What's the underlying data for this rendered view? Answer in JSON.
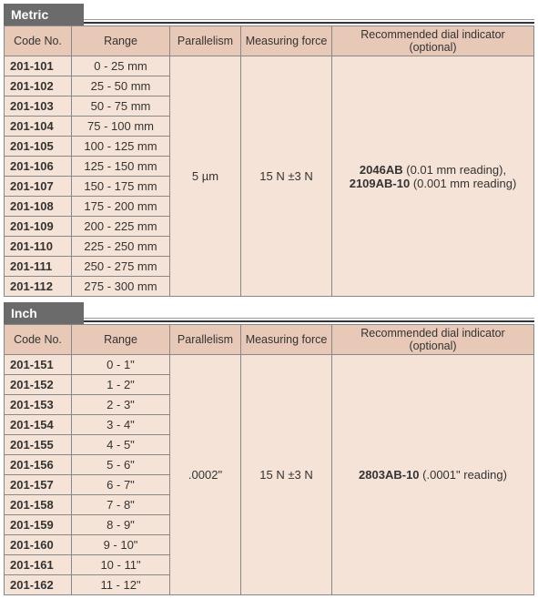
{
  "colors": {
    "tab_bg": "#6b6b6b",
    "tab_text": "#ffffff",
    "header_bg": "#e8c9b8",
    "cell_bg": "#f6e3d7",
    "border": "#888888",
    "text": "#333333"
  },
  "sections": [
    {
      "title": "Metric",
      "columns": [
        "Code No.",
        "Range",
        "Parallelism",
        "Measuring force",
        "Recommended dial indicator (optional)"
      ],
      "rows": [
        {
          "code": "201-101",
          "range": "0 - 25 mm"
        },
        {
          "code": "201-102",
          "range": "25 - 50 mm"
        },
        {
          "code": "201-103",
          "range": "50 - 75 mm"
        },
        {
          "code": "201-104",
          "range": "75 - 100 mm"
        },
        {
          "code": "201-105",
          "range": "100 - 125 mm"
        },
        {
          "code": "201-106",
          "range": "125 - 150 mm"
        },
        {
          "code": "201-107",
          "range": "150 - 175 mm"
        },
        {
          "code": "201-108",
          "range": "175 - 200 mm"
        },
        {
          "code": "201-109",
          "range": "200 - 225 mm"
        },
        {
          "code": "201-110",
          "range": "225 - 250 mm"
        },
        {
          "code": "201-111",
          "range": "250 - 275 mm"
        },
        {
          "code": "201-112",
          "range": "275 - 300 mm"
        }
      ],
      "parallelism": "5 µm",
      "measuring_force": "15 N ±3 N",
      "recommended": [
        {
          "model": "2046AB",
          "note": " (0.01 mm reading),"
        },
        {
          "model": "2109AB-10",
          "note": " (0.001 mm reading)"
        }
      ]
    },
    {
      "title": "Inch",
      "columns": [
        "Code No.",
        "Range",
        "Parallelism",
        "Measuring force",
        "Recommended dial indicator (optional)"
      ],
      "rows": [
        {
          "code": "201-151",
          "range": "0 - 1\""
        },
        {
          "code": "201-152",
          "range": "1 - 2\""
        },
        {
          "code": "201-153",
          "range": "2 - 3\""
        },
        {
          "code": "201-154",
          "range": "3 - 4\""
        },
        {
          "code": "201-155",
          "range": "4 - 5\""
        },
        {
          "code": "201-156",
          "range": "5 - 6\""
        },
        {
          "code": "201-157",
          "range": "6 - 7\""
        },
        {
          "code": "201-158",
          "range": "7 - 8\""
        },
        {
          "code": "201-159",
          "range": "8 - 9\""
        },
        {
          "code": "201-160",
          "range": "9 - 10\""
        },
        {
          "code": "201-161",
          "range": "10 - 11\""
        },
        {
          "code": "201-162",
          "range": "11 - 12\""
        }
      ],
      "parallelism": ".0002\"",
      "measuring_force": "15 N ±3 N",
      "recommended": [
        {
          "model": "2803AB-10",
          "note": " (.0001\" reading)"
        }
      ]
    }
  ]
}
